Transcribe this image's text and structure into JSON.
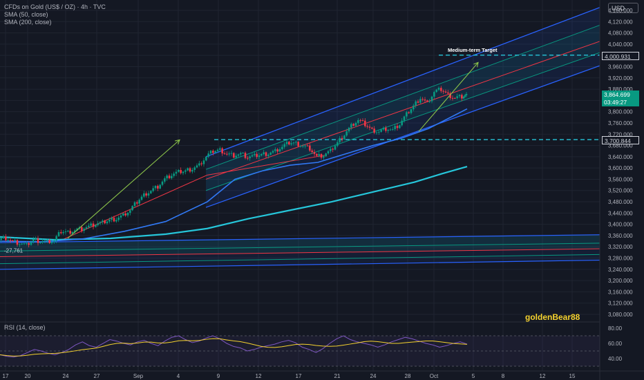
{
  "header": {
    "symbol_line": "CFDs on Gold (US$ / OZ) · 4h · TVC",
    "sma50": "SMA (50, close)",
    "sma200": "SMA (200, close)",
    "currency": "USD"
  },
  "rsi_label": "RSI (14, close)",
  "watermark": "goldenBear88",
  "annotations": {
    "target": "Medium-term Target",
    "low_value": "-27,761"
  },
  "price_tags": {
    "target_level": "4,000.931",
    "current": "3,864.699",
    "countdown": "03:49:27",
    "support_level": "3,700.844"
  },
  "colors": {
    "background": "#141823",
    "candle_up": "#089981",
    "candle_down": "#f23645",
    "channel_blue": "#2962ff",
    "channel_red": "#f23645",
    "channel_green": "#089981",
    "sma50": "#3179f5",
    "sma200": "#26c6da",
    "rsi": "#7e57c2",
    "rsi_ma": "#f5d22e",
    "hline": "#26c6da",
    "arrow": "#8bc34a"
  },
  "chart_data": {
    "type": "candlestick",
    "title": "CFDs on Gold (US$ / OZ) · 4h · TVC",
    "ylim": [
      3040,
      4200
    ],
    "price_ticks": [
      4160,
      4120,
      4080,
      4040,
      4000,
      3960,
      3920,
      3880,
      3840,
      3800,
      3760,
      3720,
      3680,
      3640,
      3600,
      3560,
      3520,
      3480,
      3440,
      3400,
      3360,
      3320,
      3280,
      3240,
      3200,
      3160,
      3120,
      3080
    ],
    "price_tick_labels": [
      "4,160.000",
      "4,120.000",
      "4,080.000",
      "4,040.000",
      "4,000.000",
      "3,960.000",
      "3,920.000",
      "3,880.000",
      "3,840.000",
      "3,800.000",
      "3,760.000",
      "3,720.000",
      "3,680.000",
      "3,640.000",
      "3,600.000",
      "3,560.000",
      "3,520.000",
      "3,480.000",
      "3,440.000",
      "3,400.000",
      "3,360.000",
      "3,320.000",
      "3,280.000",
      "3,240.000",
      "3,200.000",
      "3,160.000",
      "3,120.000",
      "3,080.000"
    ],
    "x_ticks": [
      "17",
      "20",
      "24",
      "27",
      "Sep",
      "4",
      "9",
      "12",
      "17",
      "21",
      "24",
      "28",
      "Oct",
      "5",
      "8",
      "12",
      "15"
    ],
    "price_path": [
      [
        0,
        3345
      ],
      [
        10,
        3352
      ],
      [
        20,
        3338
      ],
      [
        30,
        3332
      ],
      [
        40,
        3325
      ],
      [
        50,
        3345
      ],
      [
        60,
        3340
      ],
      [
        70,
        3338
      ],
      [
        80,
        3342
      ],
      [
        90,
        3375
      ],
      [
        100,
        3372
      ],
      [
        110,
        3380
      ],
      [
        120,
        3385
      ],
      [
        130,
        3392
      ],
      [
        140,
        3400
      ],
      [
        150,
        3405
      ],
      [
        160,
        3415
      ],
      [
        170,
        3420
      ],
      [
        180,
        3432
      ],
      [
        190,
        3450
      ],
      [
        200,
        3480
      ],
      [
        210,
        3505
      ],
      [
        220,
        3520
      ],
      [
        230,
        3535
      ],
      [
        240,
        3560
      ],
      [
        250,
        3575
      ],
      [
        260,
        3585
      ],
      [
        270,
        3590
      ],
      [
        280,
        3598
      ],
      [
        290,
        3610
      ],
      [
        300,
        3640
      ],
      [
        310,
        3660
      ],
      [
        320,
        3665
      ],
      [
        330,
        3650
      ],
      [
        340,
        3645
      ],
      [
        350,
        3650
      ],
      [
        360,
        3638
      ],
      [
        370,
        3642
      ],
      [
        380,
        3648
      ],
      [
        390,
        3652
      ],
      [
        400,
        3660
      ],
      [
        410,
        3675
      ],
      [
        420,
        3690
      ],
      [
        430,
        3688
      ],
      [
        440,
        3680
      ],
      [
        450,
        3670
      ],
      [
        460,
        3640
      ],
      [
        470,
        3645
      ],
      [
        480,
        3660
      ],
      [
        490,
        3690
      ],
      [
        500,
        3720
      ],
      [
        510,
        3750
      ],
      [
        520,
        3770
      ],
      [
        530,
        3755
      ],
      [
        540,
        3735
      ],
      [
        550,
        3730
      ],
      [
        560,
        3740
      ],
      [
        570,
        3735
      ],
      [
        580,
        3755
      ],
      [
        590,
        3790
      ],
      [
        600,
        3820
      ],
      [
        610,
        3850
      ],
      [
        620,
        3830
      ],
      [
        630,
        3870
      ],
      [
        640,
        3880
      ],
      [
        650,
        3860
      ],
      [
        660,
        3850
      ],
      [
        670,
        3855
      ],
      [
        676,
        3860
      ]
    ],
    "sma50": [
      [
        0,
        3340
      ],
      [
        60,
        3338
      ],
      [
        120,
        3348
      ],
      [
        180,
        3375
      ],
      [
        240,
        3410
      ],
      [
        300,
        3480
      ],
      [
        340,
        3560
      ],
      [
        380,
        3590
      ],
      [
        420,
        3610
      ],
      [
        460,
        3620
      ],
      [
        500,
        3650
      ],
      [
        540,
        3680
      ],
      [
        580,
        3705
      ],
      [
        620,
        3740
      ],
      [
        660,
        3790
      ],
      [
        676,
        3810
      ]
    ],
    "sma200": [
      [
        0,
        3355
      ],
      [
        80,
        3345
      ],
      [
        160,
        3350
      ],
      [
        240,
        3365
      ],
      [
        300,
        3385
      ],
      [
        360,
        3420
      ],
      [
        420,
        3450
      ],
      [
        480,
        3480
      ],
      [
        540,
        3515
      ],
      [
        600,
        3550
      ],
      [
        640,
        3580
      ],
      [
        676,
        3605
      ]
    ],
    "channel_upper": {
      "x": [
        298,
        932
      ],
      "outer": [
        3640,
        4230
      ],
      "mid": [
        3595,
        4165
      ],
      "center": [
        3560,
        4105
      ]
    },
    "channel_lower": {
      "x": [
        298,
        932
      ],
      "outer": [
        3460,
        4020
      ],
      "mid": [
        3520,
        4065
      ]
    },
    "base_channel": {
      "x": [
        0,
        932
      ],
      "top": [
        3335,
        3365
      ],
      "mid": [
        3305,
        3335
      ],
      "red": [
        3285,
        3315
      ],
      "low": [
        3260,
        3295
      ],
      "bottom": [
        3240,
        3275
      ]
    },
    "hlines": [
      4000.931,
      3700.844
    ],
    "rsi": {
      "ylim": [
        30,
        80
      ],
      "ticks": [
        80,
        60,
        40
      ],
      "tick_labels": [
        "80.00",
        "60.00",
        "40.00"
      ],
      "values": [
        45,
        43,
        42,
        44,
        48,
        52,
        50,
        47,
        45,
        48,
        52,
        58,
        62,
        57,
        55,
        60,
        65,
        63,
        60,
        58,
        62,
        64,
        60,
        57,
        63,
        68,
        70,
        65,
        61,
        63,
        67,
        70,
        66,
        60,
        56,
        54,
        50,
        52,
        55,
        57,
        59,
        62,
        64,
        61,
        55,
        52,
        48,
        53,
        60,
        66,
        70,
        65,
        62,
        60,
        58,
        55,
        58,
        62,
        65,
        68,
        66,
        63,
        60,
        58,
        55,
        57,
        60,
        62,
        59
      ]
    }
  }
}
